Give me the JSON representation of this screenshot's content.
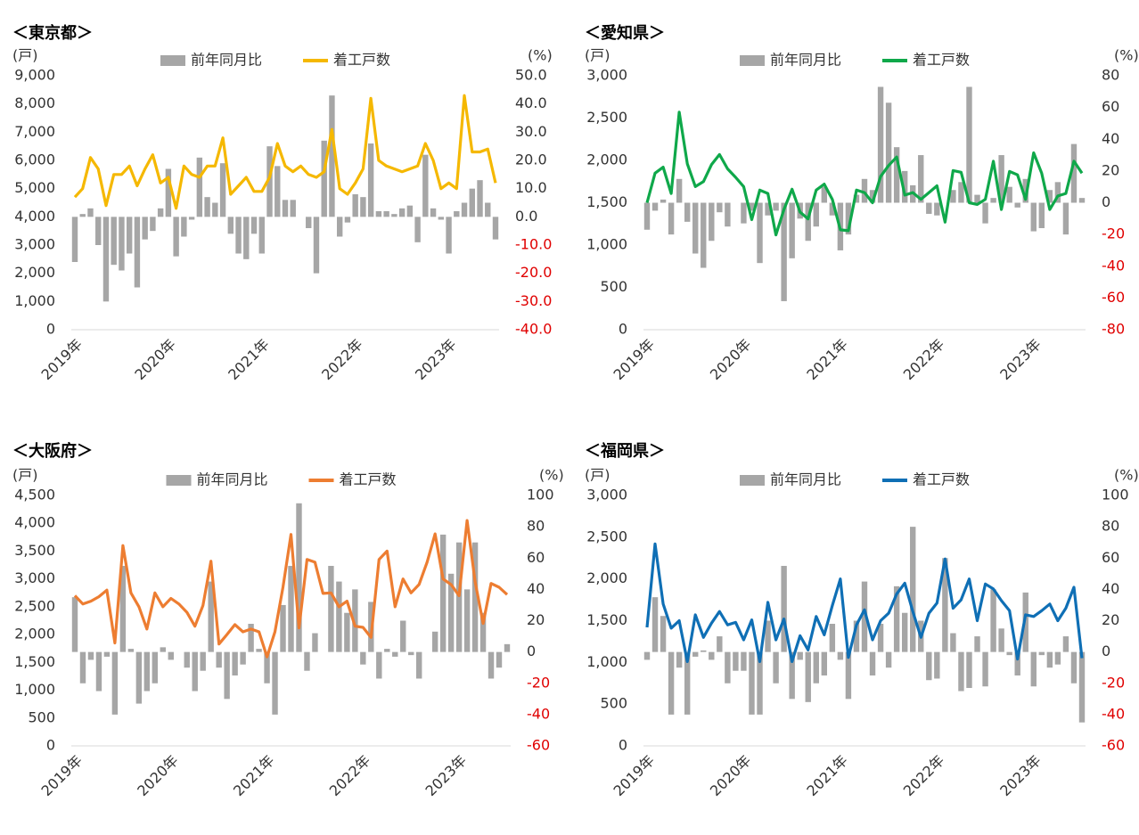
{
  "chart_data": [
    {
      "type": "combo",
      "title": "＜東京都＞",
      "y_label": "(戸)",
      "y2_label": "(%)",
      "negative_tick_color": "#e00000",
      "categories": [
        "2019年",
        null,
        null,
        null,
        null,
        null,
        null,
        null,
        null,
        null,
        null,
        null,
        "2020年",
        null,
        null,
        null,
        null,
        null,
        null,
        null,
        null,
        null,
        null,
        null,
        "2021年",
        null,
        null,
        null,
        null,
        null,
        null,
        null,
        null,
        null,
        null,
        null,
        "2022年",
        null,
        null,
        null,
        null,
        null,
        null,
        null,
        null,
        null,
        null,
        null,
        "2023年",
        null,
        null,
        null,
        null,
        null,
        null
      ],
      "ylim": [
        0,
        9000
      ],
      "yticks": [
        0,
        {
          "value": 1000,
          "label": "1,000"
        },
        {
          "value": 2000,
          "label": "2,000"
        },
        {
          "value": 3000,
          "label": "3,000"
        },
        {
          "value": 4000,
          "label": "4,000"
        },
        {
          "value": 5000,
          "label": "5,000"
        },
        {
          "value": 6000,
          "label": "6,000"
        },
        {
          "value": 7000,
          "label": "7,000"
        },
        {
          "value": 8000,
          "label": "8,000"
        },
        {
          "value": 9000,
          "label": "9,000"
        }
      ],
      "y2lim": [
        -40,
        50
      ],
      "y2ticks": [
        {
          "value": -40,
          "label": "-40.0"
        },
        {
          "value": -30,
          "label": "-30.0"
        },
        {
          "value": -20,
          "label": "-20.0"
        },
        {
          "value": -10,
          "label": "-10.0"
        },
        {
          "value": 0,
          "label": "0.0"
        },
        {
          "value": 10,
          "label": "10.0"
        },
        {
          "value": 20,
          "label": "20.0"
        },
        {
          "value": 30,
          "label": "30.0"
        },
        {
          "value": 40,
          "label": "40.0"
        },
        {
          "value": 50,
          "label": "50.0"
        }
      ],
      "series": [
        {
          "name": "前年同月比",
          "type": "bar",
          "axis": "y2",
          "color": "#a6a6a6",
          "values": [
            -16,
            1,
            3,
            -10,
            -30,
            -17,
            -19,
            -13,
            -25,
            -8,
            -5,
            3,
            17,
            -14,
            -7,
            -1,
            21,
            7,
            5,
            19,
            -6,
            -13,
            -15,
            -6,
            -13,
            25,
            18,
            6,
            6,
            0,
            -4,
            -20,
            27,
            43,
            -7,
            -2,
            8,
            7,
            26,
            2,
            2,
            1,
            3,
            4,
            -9,
            22,
            3,
            -1,
            -13,
            2,
            5,
            10,
            13,
            5,
            -8
          ]
        },
        {
          "name": "着工戸数",
          "type": "line",
          "color": "#f5b800",
          "values": [
            4700,
            5000,
            6100,
            5700,
            4400,
            5500,
            5500,
            5800,
            5100,
            5700,
            6200,
            5200,
            5400,
            4300,
            5800,
            5500,
            5400,
            5800,
            5800,
            6800,
            4800,
            5100,
            5400,
            4900,
            4900,
            5400,
            6600,
            5800,
            5600,
            5800,
            5500,
            5400,
            5600,
            7100,
            5000,
            4800,
            5200,
            5700,
            8200,
            6000,
            5800,
            5700,
            5600,
            5700,
            5800,
            6600,
            6000,
            5000,
            5200,
            5000,
            8300,
            6300,
            6300,
            6400,
            5200
          ]
        }
      ]
    },
    {
      "type": "combo",
      "title": "＜愛知県＞",
      "y_label": "(戸)",
      "y2_label": "(%)",
      "negative_tick_color": "#e00000",
      "categories": [
        "2019年",
        null,
        null,
        null,
        null,
        null,
        null,
        null,
        null,
        null,
        null,
        null,
        "2020年",
        null,
        null,
        null,
        null,
        null,
        null,
        null,
        null,
        null,
        null,
        null,
        "2021年",
        null,
        null,
        null,
        null,
        null,
        null,
        null,
        null,
        null,
        null,
        null,
        "2022年",
        null,
        null,
        null,
        null,
        null,
        null,
        null,
        null,
        null,
        null,
        null,
        "2023年",
        null,
        null,
        null,
        null,
        null,
        null
      ],
      "ylim": [
        0,
        3000
      ],
      "yticks": [
        0,
        500,
        {
          "value": 1000,
          "label": "1,000"
        },
        {
          "value": 1500,
          "label": "1,500"
        },
        {
          "value": 2000,
          "label": "2,000"
        },
        {
          "value": 2500,
          "label": "2,500"
        },
        {
          "value": 3000,
          "label": "3,000"
        }
      ],
      "y2lim": [
        -80,
        80
      ],
      "y2ticks": [
        -80,
        -60,
        -40,
        -20,
        0,
        20,
        40,
        60,
        80
      ],
      "series": [
        {
          "name": "前年同月比",
          "type": "bar",
          "axis": "y2",
          "color": "#a6a6a6",
          "values": [
            -17,
            -5,
            2,
            -20,
            15,
            -12,
            -32,
            -41,
            -24,
            -6,
            -15,
            0,
            -13,
            -5,
            -38,
            -8,
            -5,
            -62,
            -35,
            -10,
            -24,
            -15,
            10,
            -8,
            -30,
            -20,
            5,
            15,
            8,
            73,
            63,
            35,
            20,
            11,
            30,
            -7,
            -8,
            0,
            8,
            13,
            73,
            5,
            -13,
            3,
            30,
            10,
            -3,
            15,
            -18,
            -16,
            8,
            13,
            -20,
            37,
            3
          ]
        },
        {
          "name": "着工戸数",
          "type": "line",
          "color": "#0fa84a",
          "values": [
            1500,
            1850,
            1920,
            1610,
            2570,
            1960,
            1690,
            1750,
            1950,
            2070,
            1900,
            1800,
            1690,
            1300,
            1650,
            1610,
            1120,
            1420,
            1660,
            1390,
            1310,
            1650,
            1720,
            1540,
            1180,
            1170,
            1650,
            1620,
            1500,
            1810,
            1940,
            2040,
            1590,
            1620,
            1540,
            1620,
            1700,
            1270,
            1880,
            1860,
            1500,
            1480,
            1540,
            1990,
            1420,
            1870,
            1830,
            1540,
            2090,
            1850,
            1420,
            1580,
            1610,
            1990,
            1850
          ]
        }
      ]
    },
    {
      "type": "combo",
      "title": "＜大阪府＞",
      "y_label": "(戸)",
      "y2_label": "(%)",
      "negative_tick_color": "#e00000",
      "categories": [
        "2019年",
        null,
        null,
        null,
        null,
        null,
        null,
        null,
        null,
        null,
        null,
        null,
        "2020年",
        null,
        null,
        null,
        null,
        null,
        null,
        null,
        null,
        null,
        null,
        null,
        "2021年",
        null,
        null,
        null,
        null,
        null,
        null,
        null,
        null,
        null,
        null,
        null,
        "2022年",
        null,
        null,
        null,
        null,
        null,
        null,
        null,
        null,
        null,
        null,
        null,
        "2023年",
        null,
        null,
        null,
        null,
        null,
        null
      ],
      "ylim": [
        0,
        4500
      ],
      "yticks": [
        0,
        500,
        {
          "value": 1000,
          "label": "1,000"
        },
        {
          "value": 1500,
          "label": "1,500"
        },
        {
          "value": 2000,
          "label": "2,000"
        },
        {
          "value": 2500,
          "label": "2,500"
        },
        {
          "value": 3000,
          "label": "3,000"
        },
        {
          "value": 3500,
          "label": "3,500"
        },
        {
          "value": 4000,
          "label": "4,000"
        },
        {
          "value": 4500,
          "label": "4,500"
        }
      ],
      "y2lim": [
        -60,
        100
      ],
      "y2ticks": [
        -60,
        -40,
        -20,
        0,
        20,
        40,
        60,
        80,
        100
      ],
      "series": [
        {
          "name": "前年同月比",
          "type": "bar",
          "axis": "y2",
          "color": "#a6a6a6",
          "values": [
            35,
            -20,
            -5,
            -25,
            -3,
            -40,
            55,
            2,
            -33,
            -25,
            -20,
            3,
            -5,
            0,
            -10,
            -25,
            -12,
            45,
            -10,
            -30,
            -15,
            -8,
            18,
            2,
            -20,
            -40,
            30,
            55,
            95,
            -12,
            12,
            0,
            55,
            45,
            25,
            40,
            -8,
            32,
            -17,
            2,
            -3,
            20,
            -2,
            -17,
            0,
            13,
            75,
            50,
            70,
            40,
            70,
            25,
            -17,
            -10,
            5
          ]
        },
        {
          "name": "着工戸数",
          "type": "line",
          "color": "#ed7d31",
          "values": [
            2700,
            2550,
            2600,
            2680,
            2800,
            1850,
            3600,
            2750,
            2500,
            2100,
            2750,
            2500,
            2650,
            2550,
            2400,
            2150,
            2520,
            3320,
            1830,
            2000,
            2180,
            2050,
            2100,
            2050,
            1600,
            2050,
            2850,
            3800,
            2120,
            3350,
            3300,
            2740,
            2750,
            2500,
            2600,
            2150,
            2130,
            1950,
            3350,
            3500,
            2500,
            3000,
            2750,
            2900,
            3300,
            3810,
            3000,
            2900,
            2700,
            4050,
            2950,
            2200,
            2920,
            2850,
            2720
          ]
        }
      ]
    },
    {
      "type": "combo",
      "title": "＜福岡県＞",
      "y_label": "(戸)",
      "y2_label": "(%)",
      "negative_tick_color": "#e00000",
      "categories": [
        "2019年",
        null,
        null,
        null,
        null,
        null,
        null,
        null,
        null,
        null,
        null,
        null,
        "2020年",
        null,
        null,
        null,
        null,
        null,
        null,
        null,
        null,
        null,
        null,
        null,
        "2021年",
        null,
        null,
        null,
        null,
        null,
        null,
        null,
        null,
        null,
        null,
        null,
        "2022年",
        null,
        null,
        null,
        null,
        null,
        null,
        null,
        null,
        null,
        null,
        null,
        "2023年",
        null,
        null,
        null,
        null,
        null,
        null
      ],
      "ylim": [
        0,
        3000
      ],
      "yticks": [
        0,
        500,
        {
          "value": 1000,
          "label": "1,000"
        },
        {
          "value": 1500,
          "label": "1,500"
        },
        {
          "value": 2000,
          "label": "2,000"
        },
        {
          "value": 2500,
          "label": "2,500"
        },
        {
          "value": 3000,
          "label": "3,000"
        }
      ],
      "y2lim": [
        -60,
        100
      ],
      "y2ticks": [
        -60,
        -40,
        -20,
        0,
        20,
        40,
        60,
        80,
        100
      ],
      "series": [
        {
          "name": "前年同月比",
          "type": "bar",
          "axis": "y2",
          "color": "#a6a6a6",
          "values": [
            -5,
            35,
            23,
            -40,
            -10,
            -40,
            -3,
            1,
            -5,
            10,
            -20,
            -12,
            -12,
            -40,
            -40,
            20,
            -20,
            55,
            -30,
            -5,
            -32,
            -20,
            -15,
            18,
            -5,
            -30,
            20,
            45,
            -15,
            18,
            -10,
            42,
            25,
            80,
            20,
            -18,
            -17,
            60,
            12,
            -25,
            -23,
            10,
            -22,
            40,
            15,
            -2,
            -15,
            38,
            -22,
            -2,
            -10,
            -8,
            10,
            -20,
            -45
          ]
        },
        {
          "name": "着工戸数",
          "type": "line",
          "color": "#0f6fb5",
          "values": [
            1420,
            2420,
            1700,
            1410,
            1500,
            1010,
            1570,
            1300,
            1470,
            1610,
            1450,
            1480,
            1270,
            1510,
            1010,
            1720,
            1270,
            1520,
            1010,
            1320,
            1150,
            1550,
            1330,
            1680,
            2000,
            1060,
            1450,
            1630,
            1270,
            1500,
            1590,
            1820,
            1950,
            1610,
            1300,
            1590,
            1710,
            2240,
            1650,
            1750,
            2000,
            1500,
            1940,
            1880,
            1740,
            1620,
            1040,
            1570,
            1550,
            1620,
            1700,
            1500,
            1650,
            1900,
            1050
          ]
        }
      ]
    }
  ]
}
